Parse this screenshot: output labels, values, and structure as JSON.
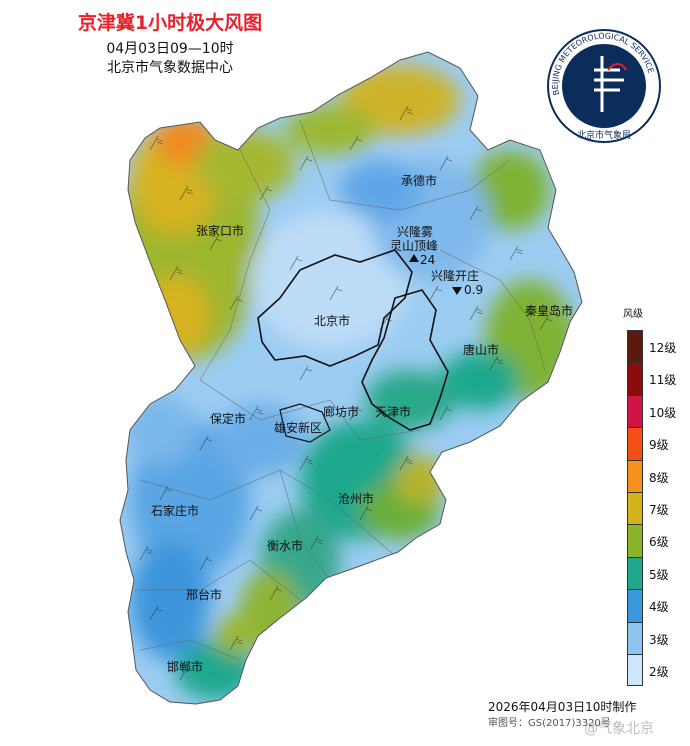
{
  "header": {
    "title": "京津冀1小时极大风图",
    "time": "04月03日09—10时",
    "org": "北京市气象数据中心"
  },
  "logo": {
    "ring_text": "BEIJING METEOROLOGICAL SERVICE",
    "bottom_text": "北京市气象局"
  },
  "cities": [
    {
      "name": "承德市"
    },
    {
      "name": "张家口市"
    },
    {
      "name": "北京市"
    },
    {
      "name": "秦皇岛市"
    },
    {
      "name": "唐山市"
    },
    {
      "name": "保定市"
    },
    {
      "name": "廊坊市"
    },
    {
      "name": "天津市"
    },
    {
      "name": "雄安新区"
    },
    {
      "name": "沧州市"
    },
    {
      "name": "石家庄市"
    },
    {
      "name": "衡水市"
    },
    {
      "name": "邢台市"
    },
    {
      "name": "邯郸市"
    }
  ],
  "stations": [
    {
      "name": "兴隆雾灵山顶峰",
      "line1": "兴隆雾",
      "line2": "灵山顶峰",
      "value": "24"
    },
    {
      "name": "兴隆开庄",
      "line1": "兴隆开庄",
      "value": "0.9"
    }
  ],
  "legend": {
    "title": "风级",
    "levels": [
      {
        "label": "12级",
        "color": "#5a1a0e"
      },
      {
        "label": "11级",
        "color": "#8c0c0c"
      },
      {
        "label": "10级",
        "color": "#d11445"
      },
      {
        "label": "9级",
        "color": "#f25014"
      },
      {
        "label": "8级",
        "color": "#f5921e"
      },
      {
        "label": "7级",
        "color": "#d4b21c"
      },
      {
        "label": "6级",
        "color": "#8cb428"
      },
      {
        "label": "5级",
        "color": "#1fa88e"
      },
      {
        "label": "4级",
        "color": "#3a98dc"
      },
      {
        "label": "3级",
        "color": "#8ec4f0"
      },
      {
        "label": "2级",
        "color": "#cfe6fa"
      }
    ]
  },
  "footer": {
    "made": "2026年04月03日10时制作",
    "map_no": "审图号：GS(2017)3320号",
    "watermark": "@气象北京"
  }
}
